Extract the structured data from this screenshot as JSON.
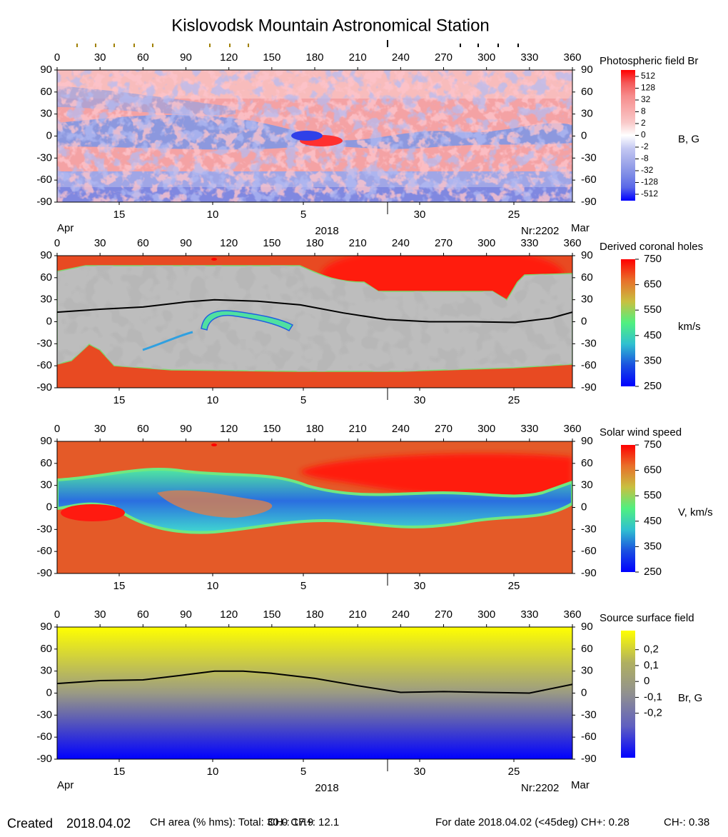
{
  "title": "Kislovodsk Mountain Astronomical Station",
  "chart_data": [
    {
      "type": "map",
      "title": "Photospheric field Br",
      "unit": "B, G",
      "xlim": [
        0,
        360
      ],
      "xticks": [
        0,
        30,
        60,
        90,
        120,
        150,
        180,
        210,
        240,
        270,
        300,
        330,
        360
      ],
      "ylim": [
        -90,
        90
      ],
      "yticks": [
        90,
        60,
        30,
        0,
        -30,
        -60,
        -90
      ],
      "date_labels": [
        "15",
        "10",
        "5",
        "30",
        "25"
      ],
      "period": {
        "start": "Apr",
        "year": "2018",
        "rotation": "Nr:2202",
        "end": "Mar"
      },
      "colorbar_ticks": [
        512,
        128,
        32,
        8,
        2,
        0,
        -2,
        -8,
        -32,
        -128,
        -512
      ],
      "colorbar_colors": [
        "#ff0000",
        "#f45a5a",
        "#f68c8c",
        "#f8aaaa",
        "#f9c8c8",
        "#ffffff",
        "#c4c8f2",
        "#a2aaea",
        "#7e8ce6",
        "#5866e8",
        "#0000ff"
      ]
    },
    {
      "type": "map",
      "title": "Derived coronal holes",
      "unit": "km/s",
      "xlim": [
        0,
        360
      ],
      "xticks": [
        0,
        30,
        60,
        90,
        120,
        150,
        180,
        210,
        240,
        270,
        300,
        330,
        360
      ],
      "ylim": [
        -90,
        90
      ],
      "yticks": [
        90,
        60,
        30,
        0,
        -30,
        -60,
        -90
      ],
      "date_labels": [
        "15",
        "10",
        "5",
        "30",
        "25"
      ],
      "clim": [
        250,
        750
      ],
      "colorbar_ticks": [
        750,
        650,
        550,
        450,
        350,
        250
      ],
      "colorbar_colors": [
        "#ff0000",
        "#e8702a",
        "#c8c040",
        "#50f080",
        "#30c0d0",
        "#1a50e0",
        "#0000ff"
      ],
      "neutral_line": {
        "x": [
          0,
          30,
          60,
          90,
          110,
          140,
          170,
          200,
          230,
          260,
          290,
          320,
          345,
          360
        ],
        "y": [
          13,
          17,
          20,
          27,
          30,
          28,
          23,
          12,
          3,
          0,
          0,
          -1,
          5,
          13
        ]
      }
    },
    {
      "type": "map",
      "title": "Solar wind speed",
      "unit": "V, km/s",
      "xlim": [
        0,
        360
      ],
      "xticks": [
        0,
        30,
        60,
        90,
        120,
        150,
        180,
        210,
        240,
        270,
        300,
        330,
        360
      ],
      "ylim": [
        -90,
        90
      ],
      "yticks": [
        90,
        60,
        30,
        0,
        -30,
        -60,
        -90
      ],
      "date_labels": [
        "15",
        "10",
        "5",
        "30",
        "25"
      ],
      "clim": [
        250,
        750
      ],
      "colorbar_ticks": [
        750,
        650,
        550,
        450,
        350,
        250
      ],
      "colorbar_colors": [
        "#ff0000",
        "#e8702a",
        "#c8c040",
        "#50f080",
        "#30c0d0",
        "#1a50e0",
        "#0000ff"
      ]
    },
    {
      "type": "map",
      "title": "Source surface field",
      "unit": "Br, G",
      "xlim": [
        0,
        360
      ],
      "xticks": [
        0,
        30,
        60,
        90,
        120,
        150,
        180,
        210,
        240,
        270,
        300,
        330,
        360
      ],
      "ylim": [
        -90,
        90
      ],
      "yticks": [
        90,
        60,
        30,
        0,
        -30,
        -60,
        -90
      ],
      "date_labels": [
        "15",
        "10",
        "5",
        "30",
        "25"
      ],
      "period": {
        "start": "Apr",
        "year": "2018",
        "rotation": "Nr:2202",
        "end": "Mar"
      },
      "clim": [
        -0.48,
        0.32
      ],
      "colorbar_ticks": [
        {
          "value": 0.2,
          "label": "0,2"
        },
        {
          "value": 0.1,
          "label": "0,1"
        },
        0,
        {
          "value": -0.1,
          "label": "-0,1"
        },
        {
          "value": -0.2,
          "label": "-0,2"
        }
      ],
      "colorbar_colors": [
        "#ffff00",
        "#b0b060",
        "#909090",
        "#6060c0",
        "#0000ff"
      ],
      "neutral_line": {
        "x": [
          0,
          30,
          60,
          90,
          110,
          130,
          150,
          180,
          210,
          240,
          270,
          300,
          330,
          360
        ],
        "y": [
          13,
          17,
          18,
          25,
          30,
          30,
          27,
          20,
          10,
          1,
          2,
          1,
          0,
          12
        ]
      }
    }
  ],
  "footer": [
    "Created",
    "2018.04.02",
    "CH area (% hms): Total: 30.0 CH+: 12.1",
    "CH-: 17.9",
    "For date 2018.04.02 (<45deg) CH+: 0.28",
    "CH-: 0.38"
  ]
}
